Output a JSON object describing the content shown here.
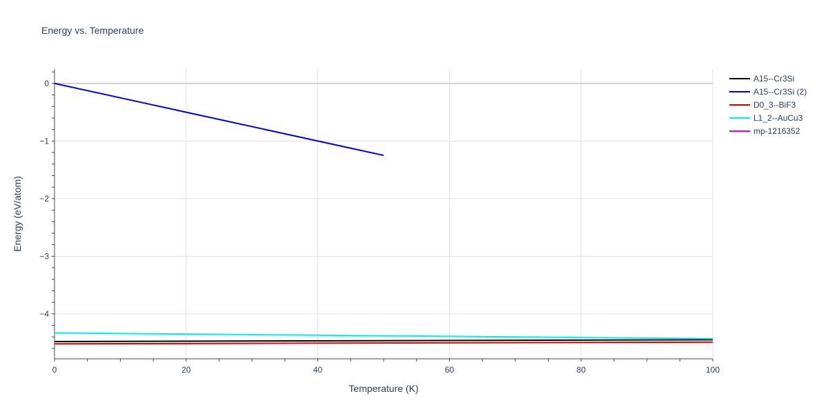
{
  "chart_data": {
    "type": "line",
    "title": "Energy vs. Temperature",
    "xlabel": "Temperature (K)",
    "ylabel": "Energy (eV/atom)",
    "xlim": [
      0,
      100
    ],
    "ylim": [
      -4.78,
      0.25
    ],
    "xticks": [
      0,
      20,
      40,
      60,
      80,
      100
    ],
    "yticks": [
      0,
      -1,
      -2,
      -3,
      -4
    ],
    "ytick_labels": [
      "0",
      "−1",
      "−2",
      "−3",
      "−4"
    ],
    "grid": true,
    "legend_position": "top-right",
    "series": [
      {
        "name": "A15--Cr3Si",
        "color": "#000000",
        "x": [
          0,
          100
        ],
        "y": [
          -4.48,
          -4.45
        ]
      },
      {
        "name": "A15--Cr3Si (2)",
        "color": "#0000dd",
        "x": [
          0,
          50
        ],
        "y": [
          0,
          -1.25
        ]
      },
      {
        "name": "D0_3--BiF3",
        "color": "#dd0000",
        "x": [
          0,
          100
        ],
        "y": [
          -4.52,
          -4.49
        ]
      },
      {
        "name": "L1_2--AuCu3",
        "color": "#00eeee",
        "x": [
          0,
          20,
          40,
          60,
          80,
          100
        ],
        "y": [
          -4.33,
          -4.35,
          -4.37,
          -4.39,
          -4.41,
          -4.43
        ]
      },
      {
        "name": "mp-1216352",
        "color": "#dd00dd",
        "x": [],
        "y": []
      }
    ]
  }
}
